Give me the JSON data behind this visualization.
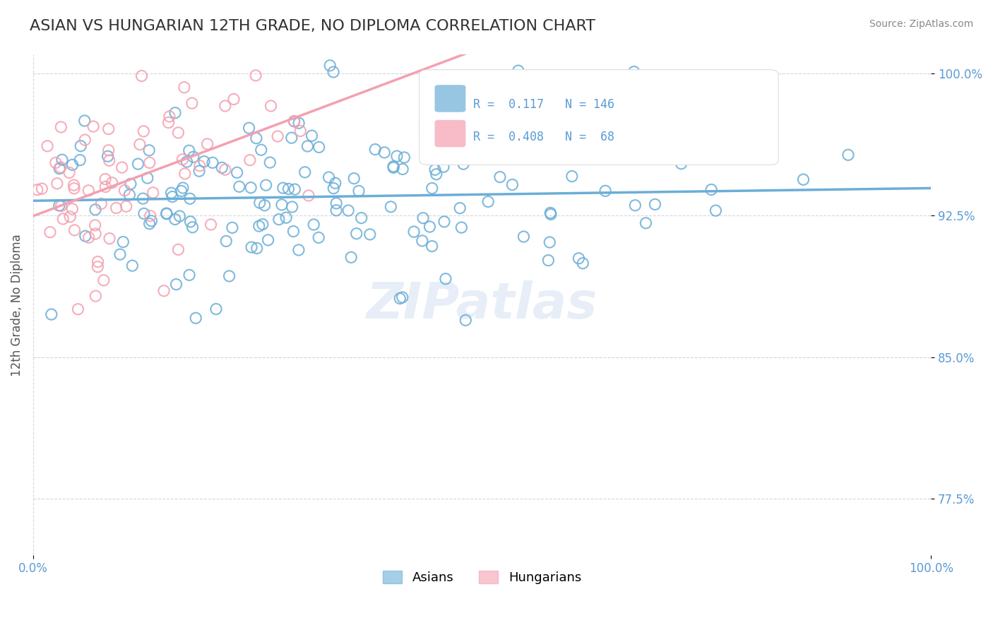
{
  "title": "ASIAN VS HUNGARIAN 12TH GRADE, NO DIPLOMA CORRELATION CHART",
  "source": "Source: ZipAtlas.com",
  "xlabel": "",
  "ylabel": "12th Grade, No Diploma",
  "xlim": [
    0.0,
    1.0
  ],
  "ylim": [
    0.745,
    1.01
  ],
  "yticks": [
    0.775,
    0.85,
    0.925,
    1.0
  ],
  "ytick_labels": [
    "77.5%",
    "85.0%",
    "92.5%",
    "100.0%"
  ],
  "xtick_labels": [
    "0.0%",
    "100.0%"
  ],
  "xticks": [
    0.0,
    1.0
  ],
  "asian_color": "#6baed6",
  "hungarian_color": "#f4a0b0",
  "asian_R": 0.117,
  "asian_N": 146,
  "hungarian_R": 0.408,
  "hungarian_N": 68,
  "legend_label_asian": "Asians",
  "legend_label_hungarian": "Hungarians",
  "title_fontsize": 16,
  "label_color": "#5b9bd5",
  "watermark": "ZIPatlas",
  "background_color": "#ffffff"
}
